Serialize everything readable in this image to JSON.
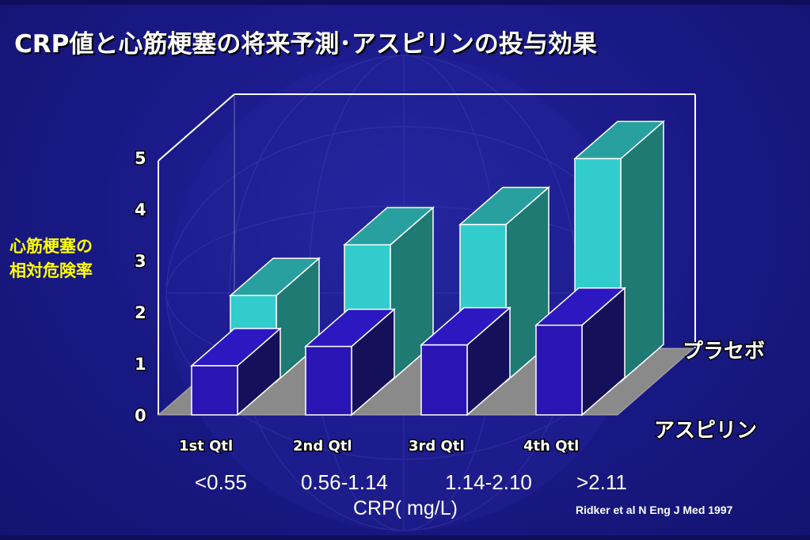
{
  "title": "CRP値と心筋梗塞の将来予測･アスピリンの投与効果",
  "ylabel_lines": [
    "心筋梗塞の",
    "相対危険率"
  ],
  "crp_ranges": [
    "<0.55",
    "0.56-1.14",
    "1.14-2.10",
    ">2.11"
  ],
  "crp_unit": "CRP( mg/L)",
  "source": "Ridker et al N Eng J Med 1997",
  "colors": {
    "background": "#1c1c8c",
    "placebo_front": "#33cccc",
    "placebo_side": "#1e7a72",
    "placebo_top": "#29a0a0",
    "aspirin_front": "#2a14b4",
    "aspirin_side": "#14105a",
    "aspirin_top": "#2c18c0",
    "floor": "#8a8a8a",
    "label_yellow": "#ffff00"
  },
  "chart_data": {
    "type": "bar",
    "categories": [
      "1st Qtl",
      "2nd Qtl",
      "3rd Qtl",
      "4th Qtl"
    ],
    "series": [
      {
        "name": "アスピリン",
        "values": [
          0.97,
          1.35,
          1.38,
          1.77
        ]
      },
      {
        "name": "プラセボ",
        "values": [
          1.7,
          2.7,
          3.1,
          4.4
        ]
      }
    ],
    "yticks": [
      "0",
      "1",
      "2",
      "3",
      "4",
      "5"
    ],
    "ylim": [
      0,
      5
    ],
    "grid": false
  }
}
